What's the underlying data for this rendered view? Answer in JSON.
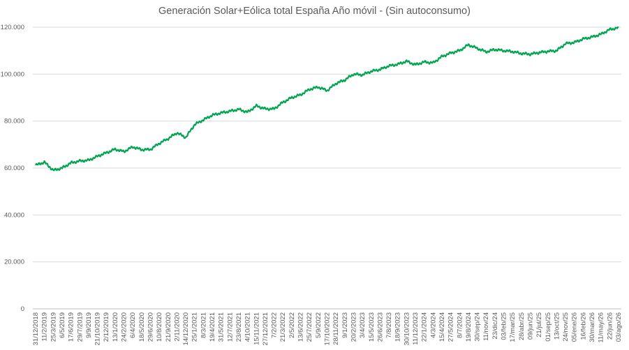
{
  "chart_data": {
    "type": "line",
    "title": "Generación Solar+Eólica total España Año móvil - (Sin autoconsumo)",
    "xlabel": "",
    "ylabel": "",
    "ylim": [
      0,
      120000
    ],
    "y_ticks": [
      "0",
      "20.000",
      "40.000",
      "60.000",
      "80.000",
      "100.000",
      "120.000"
    ],
    "grid": true,
    "legend": "none",
    "line_color": "#00a550",
    "x_tick_labels": [
      "31/12/2018",
      "11/2/2019",
      "25/3/2019",
      "6/5/2019",
      "17/6/2019",
      "29/7/2019",
      "9/9/2019",
      "21/10/2019",
      "2/12/2019",
      "13/1/2020",
      "24/2/2020",
      "6/4/2020",
      "18/5/2020",
      "29/6/2020",
      "10/8/2020",
      "21/9/2020",
      "2/11/2020",
      "14/12/2020",
      "25/1/2021",
      "8/3/2021",
      "19/4/2021",
      "31/5/2021",
      "12/7/2021",
      "23/8/2021",
      "4/10/2021",
      "15/11/2021",
      "27/12/2021",
      "7/2/2022",
      "21/3/2022",
      "2/5/2022",
      "13/6/2022",
      "25/7/2022",
      "5/9/2022",
      "17/10/2022",
      "28/11/2022",
      "9/1/2023",
      "20/2/2023",
      "3/4/2023",
      "15/5/2023",
      "26/6/2023",
      "7/8/2023",
      "18/9/2023",
      "30/10/2023",
      "11/12/2023",
      "22/1/2024",
      "4/3/2024",
      "15/4/2024",
      "27/5/2024",
      "8/7/2024",
      "19/8/2024",
      "30/sep/24",
      "11/nov/24",
      "23/dic/24",
      "03/feb/25",
      "17/mar/25",
      "28/abr/25",
      "09/jun/25",
      "21/jul/25",
      "01/sep/25",
      "13/oct/25",
      "24/nov/25",
      "05/ene/26",
      "16/feb/26",
      "30/mar/26",
      "11/may/26",
      "22/jun/26",
      "03/ago/26"
    ],
    "x": [
      0,
      1,
      2,
      3,
      4,
      5,
      6,
      7,
      8,
      9,
      10,
      11,
      12,
      13,
      14,
      15,
      16,
      17,
      18,
      19,
      20,
      21,
      22,
      23,
      24,
      25,
      26,
      27,
      28,
      29,
      30,
      31,
      32,
      33,
      34,
      35,
      36,
      37,
      38,
      39,
      40,
      41,
      42,
      43,
      44,
      45,
      46,
      47,
      48,
      49,
      50,
      51,
      52,
      53,
      54,
      55,
      56,
      57,
      58,
      59,
      60,
      61,
      62,
      63,
      64,
      65,
      66
    ],
    "series": [
      {
        "values": [
          61200,
          62500,
          59000,
          60000,
          62200,
          63000,
          63300,
          65000,
          66500,
          68000,
          67000,
          69000,
          67800,
          67900,
          70500,
          72500,
          75000,
          73000,
          78500,
          80500,
          82500,
          83500,
          84200,
          85000,
          83800,
          86500,
          85200,
          85200,
          88000,
          90000,
          91200,
          93500,
          94500,
          93000,
          96000,
          97500,
          100000,
          99700,
          101200,
          102000,
          103500,
          104200,
          105500,
          104000,
          105200,
          104800,
          107500,
          109000,
          110000,
          112500,
          111000,
          109500,
          110500,
          110000,
          109600,
          108800,
          108500,
          109200,
          109700,
          110000,
          113000,
          113500,
          115000,
          115800,
          117000,
          119000,
          119800
        ]
      }
    ]
  }
}
